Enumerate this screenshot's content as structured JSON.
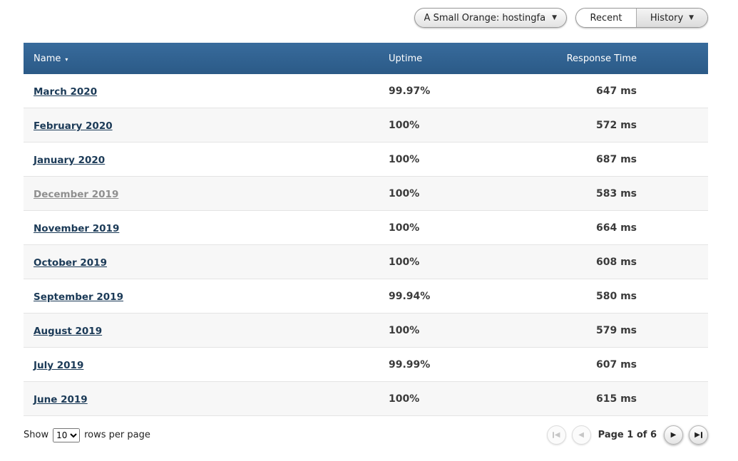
{
  "toolbar": {
    "monitor_label": "A Small Orange: hostingfa",
    "recent_label": "Recent",
    "history_label": "History"
  },
  "table": {
    "header": {
      "name": "Name",
      "uptime": "Uptime",
      "response": "Response Time"
    },
    "rows": [
      {
        "name": "March 2020",
        "uptime": "99.97%",
        "response": "647 ms",
        "visited": false
      },
      {
        "name": "February 2020",
        "uptime": "100%",
        "response": "572 ms",
        "visited": false
      },
      {
        "name": "January 2020",
        "uptime": "100%",
        "response": "687 ms",
        "visited": false
      },
      {
        "name": "December 2019",
        "uptime": "100%",
        "response": "583 ms",
        "visited": true
      },
      {
        "name": "November 2019",
        "uptime": "100%",
        "response": "664 ms",
        "visited": false
      },
      {
        "name": "October 2019",
        "uptime": "100%",
        "response": "608 ms",
        "visited": false
      },
      {
        "name": "September 2019",
        "uptime": "99.94%",
        "response": "580 ms",
        "visited": false
      },
      {
        "name": "August 2019",
        "uptime": "100%",
        "response": "579 ms",
        "visited": false
      },
      {
        "name": "July 2019",
        "uptime": "99.99%",
        "response": "607 ms",
        "visited": false
      },
      {
        "name": "June 2019",
        "uptime": "100%",
        "response": "615 ms",
        "visited": false
      }
    ]
  },
  "footer": {
    "show_label": "Show",
    "rows_per_page": "10",
    "suffix_label": "rows per page",
    "page_indicator": "Page 1 of 6"
  },
  "colors": {
    "header_bg": "#2e5f8c",
    "link": "#1b3a57",
    "visited_link": "#8f8f8f",
    "value_text": "#3b3b3b",
    "alt_row_bg": "#f7f7f7"
  }
}
